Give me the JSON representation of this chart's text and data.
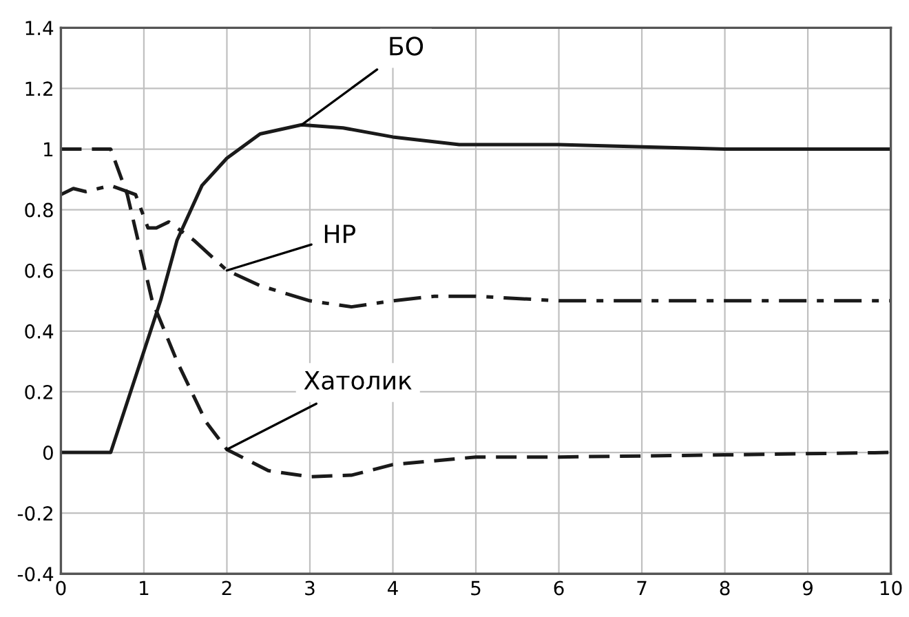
{
  "chart_data": {
    "type": "line",
    "xlim": [
      0,
      10
    ],
    "ylim": [
      -0.4,
      1.4
    ],
    "xticks": [
      0,
      1,
      2,
      3,
      4,
      5,
      6,
      7,
      8,
      9,
      10
    ],
    "yticks": [
      -0.4,
      -0.2,
      0,
      0.2,
      0.4,
      0.6,
      0.8,
      1,
      1.2,
      1.4
    ],
    "grid": true,
    "legend": false,
    "marker": "none",
    "series": [
      {
        "name": "БО",
        "color": "#1a1a1a",
        "line_style": "solid",
        "x": [
          0,
          0.6,
          0.9,
          1.2,
          1.4,
          1.7,
          2,
          2.4,
          2.9,
          3.4,
          4,
          4.8,
          6,
          8,
          10
        ],
        "values": [
          0,
          0,
          0.25,
          0.5,
          0.7,
          0.88,
          0.97,
          1.05,
          1.08,
          1.07,
          1.04,
          1.015,
          1.015,
          1.0,
          1.0
        ]
      },
      {
        "name": "НР",
        "color": "#1a1a1a",
        "line_style": "dashdot",
        "x": [
          0,
          0.15,
          0.3,
          0.6,
          0.8,
          0.9,
          1.05,
          1.15,
          1.3,
          1.6,
          2,
          2.4,
          3,
          3.5,
          4,
          4.5,
          5,
          6,
          8,
          10
        ],
        "values": [
          0.85,
          0.87,
          0.86,
          0.88,
          0.86,
          0.85,
          0.74,
          0.74,
          0.76,
          0.7,
          0.6,
          0.55,
          0.5,
          0.48,
          0.5,
          0.515,
          0.515,
          0.5,
          0.5,
          0.5
        ]
      },
      {
        "name": "Хатолик",
        "color": "#1a1a1a",
        "line_style": "dashed",
        "x": [
          0,
          0.6,
          0.8,
          1.1,
          1.4,
          1.75,
          2,
          2.5,
          3,
          3.5,
          4,
          5,
          6,
          8,
          10
        ],
        "values": [
          1,
          1,
          0.85,
          0.5,
          0.3,
          0.1,
          0.01,
          -0.06,
          -0.08,
          -0.075,
          -0.04,
          -0.015,
          -0.015,
          -0.008,
          0
        ]
      }
    ]
  }
}
